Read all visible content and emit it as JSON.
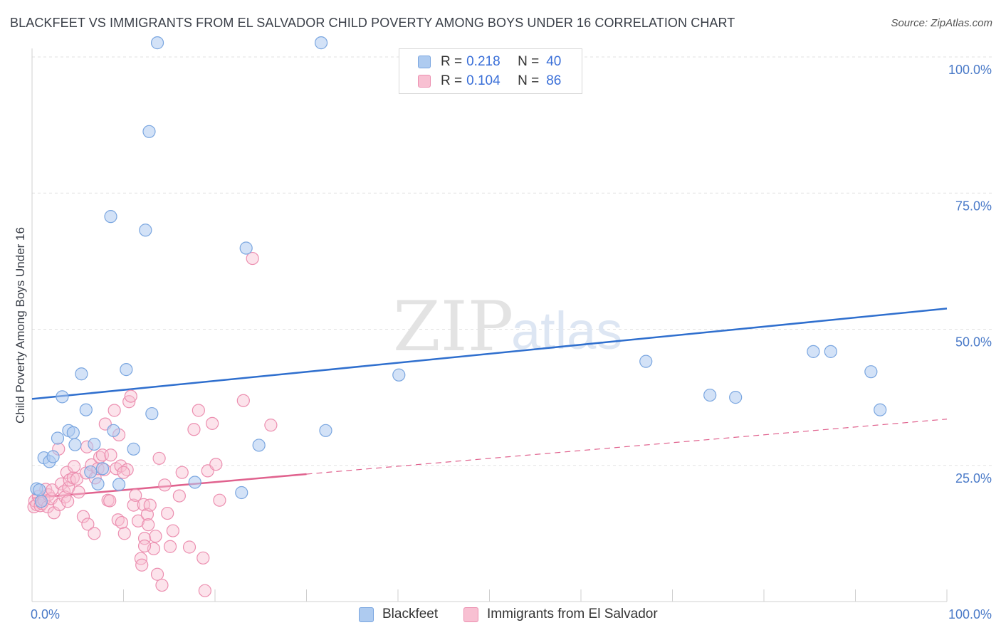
{
  "title": "BLACKFEET VS IMMIGRANTS FROM EL SALVADOR CHILD POVERTY AMONG BOYS UNDER 16 CORRELATION CHART",
  "source": "Source: ZipAtlas.com",
  "watermark": {
    "zip": "ZIP",
    "atlas": "atlas"
  },
  "legend": {
    "rows": [
      {
        "r_label": "R =",
        "r_value": "0.218",
        "n_label": "N =",
        "n_value": "40"
      },
      {
        "r_label": "R =",
        "r_value": "0.104",
        "n_label": "N =",
        "n_value": "86"
      }
    ]
  },
  "bottom_legend": [
    "Blackfeet",
    "Immigrants from El Salvador"
  ],
  "colors": {
    "blackfeet_fill": "#aecbf0",
    "blackfeet_stroke": "#7aa6e0",
    "blackfeet_line": "#2f6fce",
    "salvador_fill": "#f8c0d2",
    "salvador_stroke": "#ec8fb0",
    "salvador_line": "#e0628e",
    "tick_text": "#4a7ac8",
    "grid": "#e2e2e2"
  },
  "chart_data": {
    "type": "scatter",
    "title": "BLACKFEET VS IMMIGRANTS FROM EL SALVADOR CHILD POVERTY AMONG BOYS UNDER 16 CORRELATION CHART",
    "xlabel": "",
    "ylabel": "Child Poverty Among Boys Under 16",
    "xlim": [
      0,
      100
    ],
    "ylim": [
      0,
      100
    ],
    "x_tick_labels": [
      "0.0%",
      "100.0%"
    ],
    "y_tick_values": [
      25,
      50,
      75,
      100
    ],
    "y_tick_labels": [
      "25.0%",
      "50.0%",
      "75.0%",
      "100.0%"
    ],
    "series": [
      {
        "name": "Blackfeet",
        "R": 0.218,
        "N": 40,
        "trend": {
          "x": [
            0,
            100
          ],
          "y": [
            37.2,
            53.8
          ],
          "style": "solid"
        },
        "points": [
          [
            0.5,
            20.7
          ],
          [
            0.8,
            20.5
          ],
          [
            1.0,
            18.4
          ],
          [
            1.3,
            26.4
          ],
          [
            1.9,
            25.7
          ],
          [
            2.3,
            26.6
          ],
          [
            2.8,
            30.0
          ],
          [
            3.3,
            37.6
          ],
          [
            4.0,
            31.4
          ],
          [
            4.5,
            31.0
          ],
          [
            4.7,
            28.8
          ],
          [
            5.4,
            41.8
          ],
          [
            5.9,
            35.2
          ],
          [
            6.4,
            23.8
          ],
          [
            6.8,
            28.9
          ],
          [
            7.2,
            21.6
          ],
          [
            7.7,
            24.4
          ],
          [
            8.6,
            70.7
          ],
          [
            8.9,
            31.4
          ],
          [
            9.5,
            21.5
          ],
          [
            10.3,
            42.6
          ],
          [
            11.1,
            28.0
          ],
          [
            12.4,
            68.2
          ],
          [
            12.8,
            86.3
          ],
          [
            13.1,
            34.5
          ],
          [
            13.7,
            102.6
          ],
          [
            17.8,
            21.9
          ],
          [
            22.9,
            20.0
          ],
          [
            23.4,
            64.9
          ],
          [
            24.8,
            28.7
          ],
          [
            31.6,
            102.6
          ],
          [
            32.1,
            31.4
          ],
          [
            40.1,
            41.6
          ],
          [
            67.1,
            44.1
          ],
          [
            74.1,
            37.9
          ],
          [
            76.9,
            37.5
          ],
          [
            85.4,
            45.9
          ],
          [
            87.3,
            45.9
          ],
          [
            91.7,
            42.2
          ],
          [
            92.7,
            35.2
          ]
        ]
      },
      {
        "name": "Immigrants from El Salvador",
        "R": 0.104,
        "N": 86,
        "trend": {
          "x": [
            0,
            30,
            100
          ],
          "y": [
            19.0,
            23.4,
            33.5
          ],
          "style": "solid-then-dashed",
          "solid_until_x": 30
        },
        "points": [
          [
            0.2,
            17.4
          ],
          [
            0.3,
            18.5
          ],
          [
            0.5,
            17.8
          ],
          [
            0.7,
            19.3
          ],
          [
            0.9,
            17.6
          ],
          [
            1.1,
            18.0
          ],
          [
            1.3,
            18.6
          ],
          [
            1.5,
            20.6
          ],
          [
            1.7,
            17.4
          ],
          [
            1.8,
            19.6
          ],
          [
            2.1,
            18.9
          ],
          [
            2.2,
            20.5
          ],
          [
            2.4,
            16.3
          ],
          [
            2.9,
            28.0
          ],
          [
            3.0,
            17.8
          ],
          [
            3.2,
            21.6
          ],
          [
            3.5,
            20.2
          ],
          [
            3.6,
            19.2
          ],
          [
            3.8,
            23.7
          ],
          [
            3.9,
            18.4
          ],
          [
            4.0,
            20.9
          ],
          [
            4.1,
            22.3
          ],
          [
            4.5,
            22.7
          ],
          [
            4.6,
            24.8
          ],
          [
            4.9,
            22.5
          ],
          [
            5.1,
            20.1
          ],
          [
            5.6,
            15.6
          ],
          [
            5.9,
            23.6
          ],
          [
            6.0,
            28.4
          ],
          [
            6.1,
            14.2
          ],
          [
            6.5,
            25.1
          ],
          [
            6.8,
            12.5
          ],
          [
            6.9,
            22.7
          ],
          [
            7.2,
            24.4
          ],
          [
            7.4,
            26.5
          ],
          [
            7.7,
            26.9
          ],
          [
            7.9,
            24.2
          ],
          [
            8.0,
            32.6
          ],
          [
            8.3,
            18.6
          ],
          [
            8.5,
            18.5
          ],
          [
            9.0,
            35.1
          ],
          [
            9.2,
            24.4
          ],
          [
            9.4,
            15.0
          ],
          [
            9.5,
            30.6
          ],
          [
            9.7,
            24.9
          ],
          [
            9.8,
            14.5
          ],
          [
            10.1,
            12.5
          ],
          [
            10.4,
            24.2
          ],
          [
            10.6,
            36.7
          ],
          [
            10.8,
            37.7
          ],
          [
            11.1,
            17.7
          ],
          [
            11.3,
            19.5
          ],
          [
            11.6,
            14.8
          ],
          [
            11.9,
            7.9
          ],
          [
            12.0,
            6.7
          ],
          [
            12.2,
            17.8
          ],
          [
            12.3,
            11.6
          ],
          [
            12.6,
            16.0
          ],
          [
            12.7,
            14.1
          ],
          [
            12.9,
            17.7
          ],
          [
            13.3,
            9.7
          ],
          [
            13.5,
            12.0
          ],
          [
            13.7,
            5.0
          ],
          [
            13.9,
            26.3
          ],
          [
            14.2,
            3.0
          ],
          [
            14.5,
            21.4
          ],
          [
            14.8,
            16.2
          ],
          [
            15.1,
            10.1
          ],
          [
            15.4,
            13.0
          ],
          [
            16.1,
            19.4
          ],
          [
            16.4,
            23.7
          ],
          [
            17.2,
            10.0
          ],
          [
            17.7,
            31.6
          ],
          [
            18.2,
            35.1
          ],
          [
            18.7,
            8.0
          ],
          [
            18.9,
            2.0
          ],
          [
            19.2,
            24.0
          ],
          [
            19.7,
            32.7
          ],
          [
            20.1,
            25.2
          ],
          [
            20.5,
            18.6
          ],
          [
            23.1,
            36.9
          ],
          [
            24.1,
            63.0
          ],
          [
            26.1,
            32.4
          ],
          [
            12.3,
            10.2
          ],
          [
            8.6,
            26.9
          ],
          [
            10.0,
            23.7
          ]
        ]
      }
    ]
  }
}
